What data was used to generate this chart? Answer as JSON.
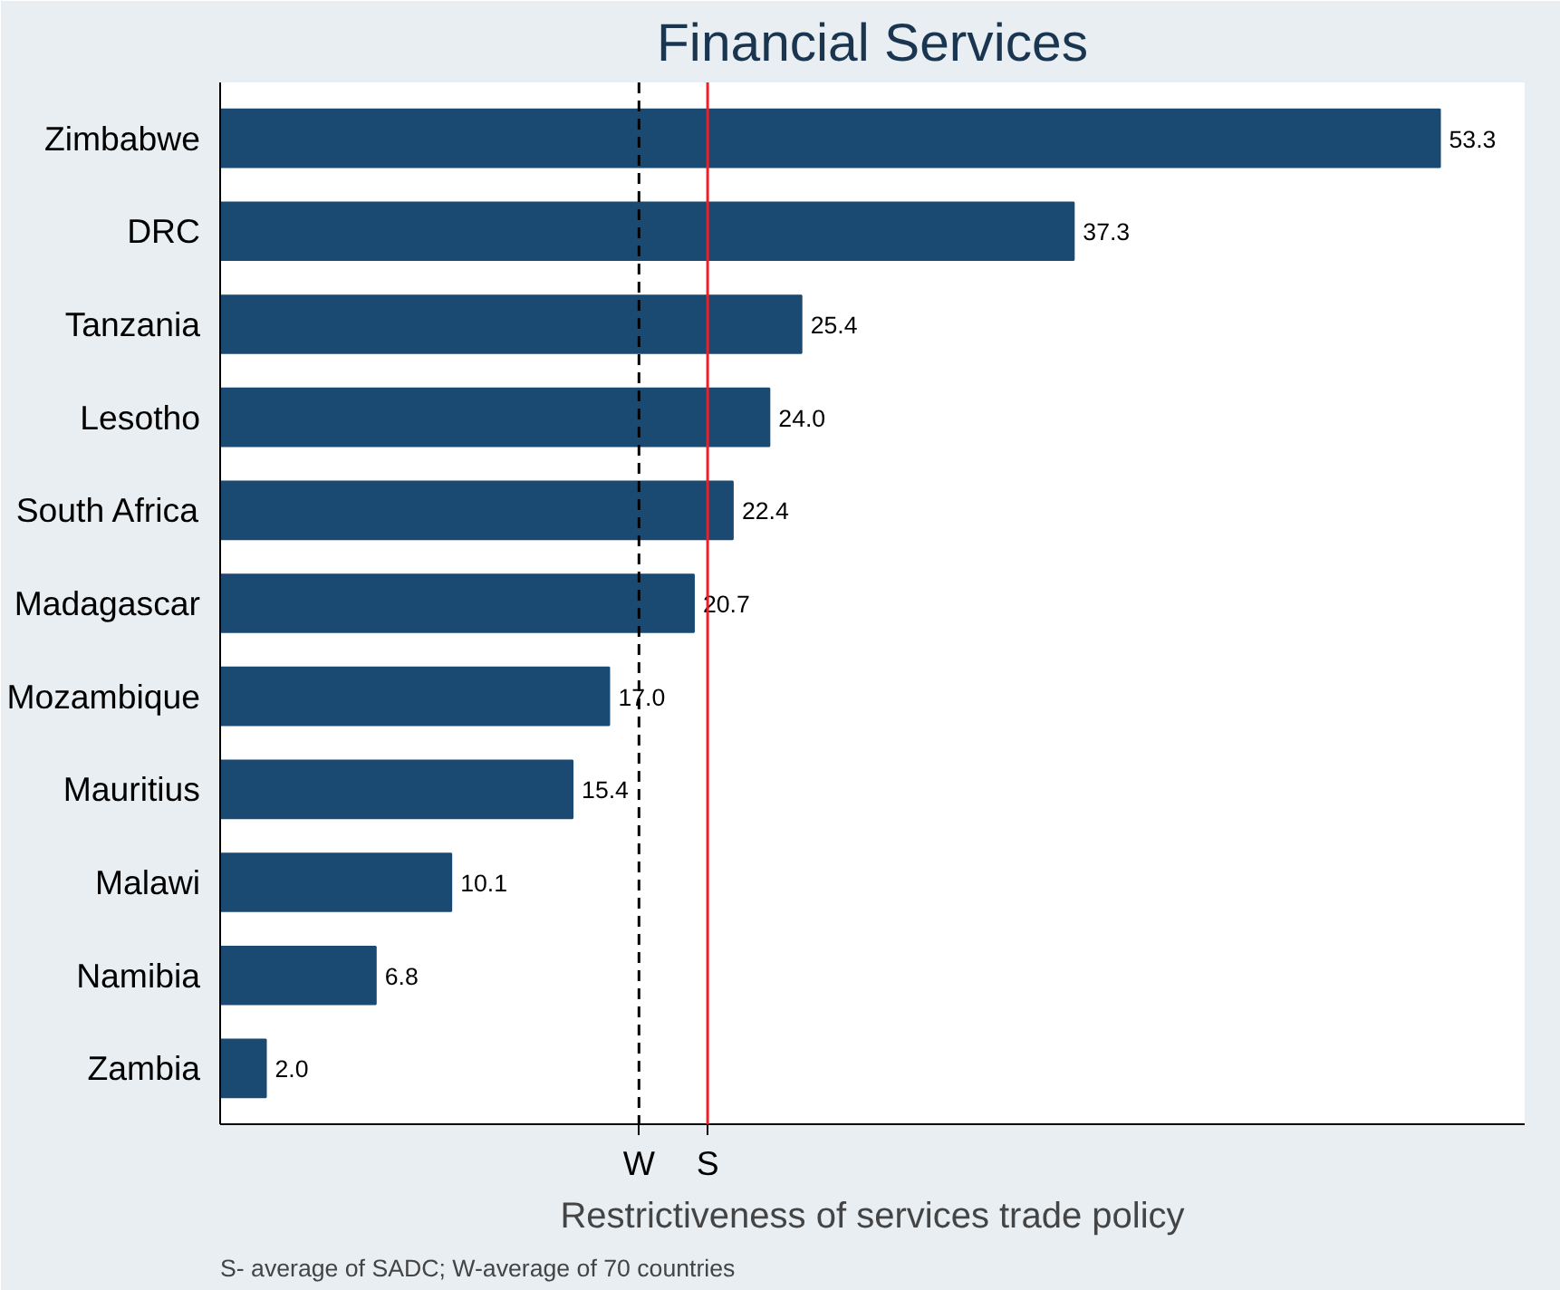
{
  "chart_data": {
    "type": "bar",
    "orientation": "horizontal",
    "title": "Financial Services",
    "xlabel": "Restrictiveness of services trade policy",
    "categories": [
      "Zimbabwe",
      "DRC",
      "Tanzania",
      "Lesotho",
      "South Africa",
      "Madagascar",
      "Mozambique",
      "Mauritius",
      "Malawi",
      "Namibia",
      "Zambia"
    ],
    "values": [
      53.3,
      37.3,
      25.4,
      24.0,
      22.4,
      20.7,
      17.0,
      15.4,
      10.1,
      6.8,
      2.0
    ],
    "value_labels": [
      "53.3",
      "37.3",
      "25.4",
      "24.0",
      "22.4",
      "20.7",
      "17.0",
      "15.4",
      "10.1",
      "6.8",
      "2.0"
    ],
    "color": "#1a4a72",
    "xlim": [
      0,
      57
    ],
    "grid": false,
    "ref_lines": [
      {
        "axis": "x",
        "value": 18.3,
        "label": "W",
        "color": "#000000",
        "line_style": "dashed"
      },
      {
        "axis": "x",
        "value": 21.3,
        "label": "S",
        "color": "#e8212b",
        "line_style": "solid"
      }
    ],
    "annotations": [
      "S- average of SADC; W-average of 70 countries"
    ]
  }
}
